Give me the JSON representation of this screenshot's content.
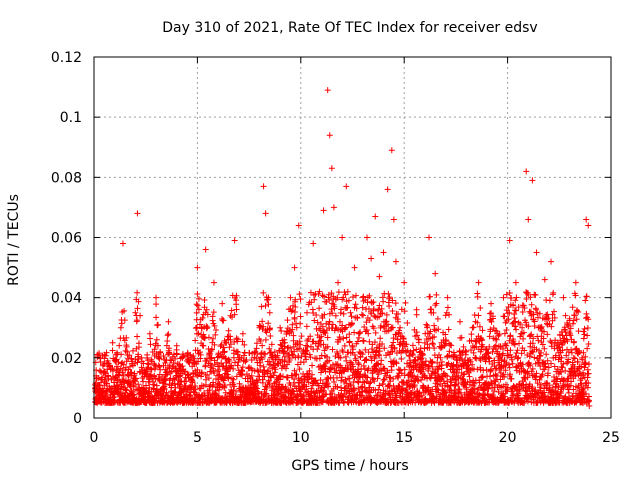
{
  "chart_data": {
    "type": "scatter",
    "title": "Day 310 of 2021, Rate Of TEC Index for receiver edsv",
    "xlabel": "GPS time / hours",
    "ylabel": "ROTI / TECUs",
    "xlim": [
      0,
      25
    ],
    "ylim": [
      0,
      0.12
    ],
    "x_ticks": [
      0,
      5,
      10,
      15,
      20,
      25
    ],
    "x_tick_labels": [
      "0",
      "5",
      "10",
      "15",
      "20",
      "25"
    ],
    "y_ticks": [
      0,
      0.02,
      0.04,
      0.06,
      0.08,
      0.1,
      0.12
    ],
    "y_tick_labels": [
      "0",
      "0.02",
      "0.04",
      "0.06",
      "0.08",
      "0.1",
      "0.12"
    ],
    "grid": true,
    "marker": "plus",
    "color": "#ff0000",
    "series": [
      {
        "x": [
          0.1,
          0.3,
          0.5,
          0.7,
          0.9,
          1.1,
          1.3,
          1.4,
          1.6,
          1.8,
          2.0,
          2.1,
          2.3,
          2.5,
          2.7,
          2.9,
          3.0,
          3.2,
          3.4,
          3.6,
          3.8,
          4.0,
          4.2,
          4.5,
          4.8,
          5.0,
          5.2,
          5.4,
          5.6,
          5.8,
          6.0,
          6.2,
          6.4,
          6.6,
          6.8,
          7.0,
          7.2,
          7.5,
          7.8,
          8.0,
          8.2,
          8.3,
          8.5,
          8.8,
          9.0,
          9.2,
          9.5,
          9.7,
          9.9,
          10.1,
          10.3,
          10.6,
          10.9,
          11.1,
          11.3,
          11.4,
          11.5,
          11.6,
          11.8,
          12.0,
          12.2,
          12.4,
          12.6,
          12.8,
          13.0,
          13.2,
          13.4,
          13.6,
          13.8,
          14.0,
          14.2,
          14.4,
          14.5,
          14.6,
          14.8,
          15.0,
          15.3,
          15.6,
          15.9,
          16.2,
          16.5,
          16.8,
          17.1,
          17.4,
          17.7,
          18.0,
          18.3,
          18.6,
          18.9,
          19.2,
          19.5,
          19.8,
          20.1,
          20.4,
          20.7,
          20.9,
          21.0,
          21.2,
          21.4,
          21.6,
          21.8,
          22.1,
          22.4,
          22.7,
          23.0,
          23.3,
          23.6,
          23.8,
          23.9
        ],
        "y": [
          0.014,
          0.02,
          0.012,
          0.018,
          0.025,
          0.016,
          0.03,
          0.058,
          0.022,
          0.014,
          0.035,
          0.068,
          0.02,
          0.015,
          0.028,
          0.018,
          0.04,
          0.022,
          0.013,
          0.032,
          0.017,
          0.024,
          0.012,
          0.019,
          0.015,
          0.05,
          0.03,
          0.056,
          0.021,
          0.045,
          0.016,
          0.038,
          0.025,
          0.034,
          0.059,
          0.02,
          0.028,
          0.014,
          0.022,
          0.03,
          0.077,
          0.068,
          0.035,
          0.02,
          0.03,
          0.026,
          0.04,
          0.05,
          0.064,
          0.022,
          0.035,
          0.058,
          0.042,
          0.069,
          0.109,
          0.094,
          0.083,
          0.07,
          0.045,
          0.06,
          0.077,
          0.035,
          0.05,
          0.028,
          0.04,
          0.06,
          0.053,
          0.067,
          0.047,
          0.055,
          0.076,
          0.089,
          0.066,
          0.052,
          0.03,
          0.045,
          0.022,
          0.036,
          0.018,
          0.06,
          0.048,
          0.025,
          0.04,
          0.015,
          0.032,
          0.022,
          0.03,
          0.045,
          0.02,
          0.038,
          0.028,
          0.04,
          0.059,
          0.045,
          0.03,
          0.082,
          0.066,
          0.079,
          0.055,
          0.03,
          0.046,
          0.052,
          0.025,
          0.04,
          0.033,
          0.045,
          0.02,
          0.066,
          0.064
        ]
      },
      {
        "x": [
          0.2,
          0.6,
          1.0,
          1.5,
          1.9,
          2.4,
          2.8,
          3.3,
          3.7,
          4.1,
          4.6,
          5.1,
          5.5,
          5.9,
          6.3,
          6.7,
          7.1,
          7.6,
          8.1,
          8.6,
          9.1,
          9.6,
          10.0,
          10.5,
          11.0,
          11.5,
          12.1,
          12.5,
          13.1,
          13.5,
          14.1,
          14.7,
          15.2,
          15.7,
          16.3,
          16.9,
          17.5,
          18.1,
          18.7,
          19.3,
          19.9,
          20.5,
          21.1,
          21.7,
          22.3,
          22.9,
          23.5,
          23.95
        ],
        "y": [
          0.008,
          0.009,
          0.007,
          0.01,
          0.006,
          0.008,
          0.007,
          0.009,
          0.006,
          0.008,
          0.01,
          0.007,
          0.009,
          0.006,
          0.01,
          0.008,
          0.007,
          0.009,
          0.008,
          0.01,
          0.007,
          0.009,
          0.008,
          0.007,
          0.01,
          0.009,
          0.008,
          0.007,
          0.01,
          0.006,
          0.008,
          0.009,
          0.007,
          0.008,
          0.006,
          0.009,
          0.007,
          0.008,
          0.01,
          0.007,
          0.009,
          0.006,
          0.008,
          0.007,
          0.009,
          0.006,
          0.008,
          0.004
        ]
      }
    ]
  }
}
